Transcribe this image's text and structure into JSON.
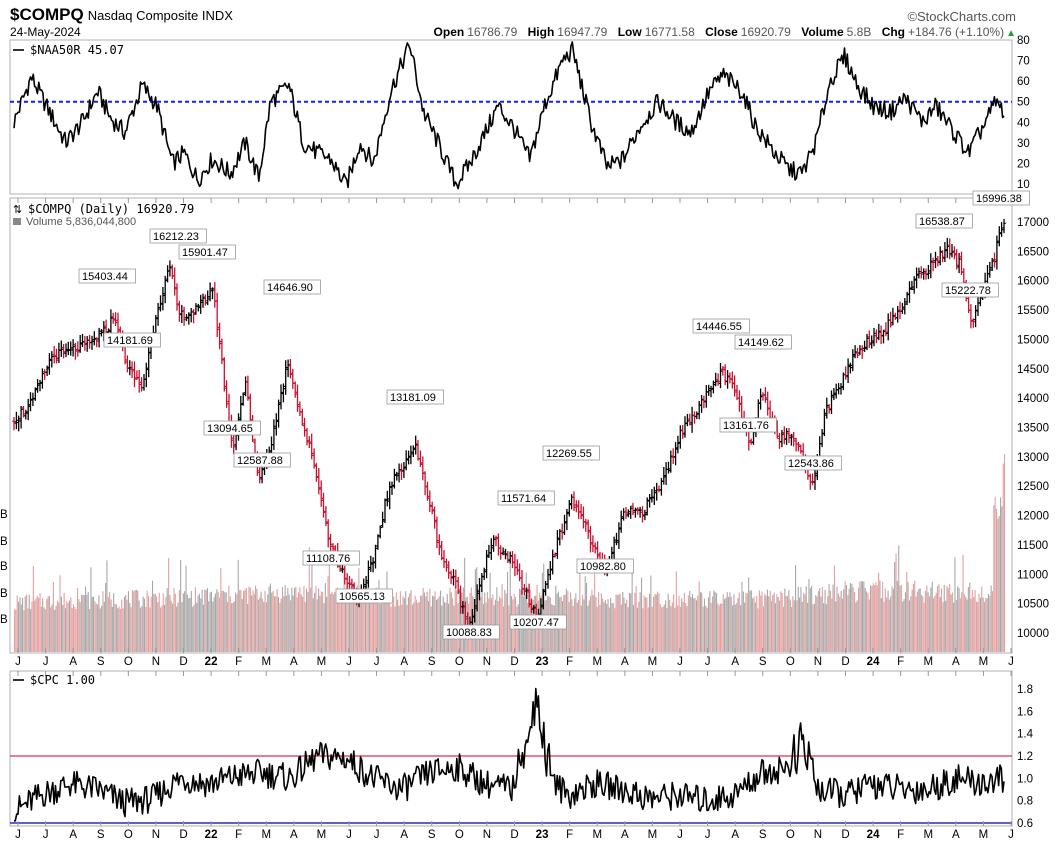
{
  "header": {
    "symbol": "$COMPQ",
    "name": "Nasdaq Composite INDX",
    "date": "24-May-2024",
    "brand": "©StockCharts.com",
    "open_label": "Open",
    "open": "16786.79",
    "high_label": "High",
    "high": "16947.79",
    "low_label": "Low",
    "low": "16771.58",
    "close_label": "Close",
    "close": "16920.79",
    "volume_label": "Volume",
    "volume": "5.8B",
    "chg_label": "Chg",
    "chg": "+184.76 (+1.10%)",
    "chg_arrow": "▲"
  },
  "panels": {
    "top_legend": "$NAA50R 45.07",
    "main_legend": "$COMPQ (Daily) 16920.79",
    "volume_legend": "Volume 5,836,044,800",
    "bottom_legend": "$CPC 1.00"
  },
  "colors": {
    "up_candle": "#000000",
    "down_candle": "#c8102e",
    "volume_up": "#a8a8a8",
    "volume_down": "#e3a0a0",
    "ref_blue": "#1a1aff",
    "cpc_red": "#d9304a",
    "cpc_blue": "#2b2bb8"
  },
  "x_axis_labels": [
    "J",
    "J",
    "A",
    "S",
    "O",
    "N",
    "D",
    "22",
    "F",
    "M",
    "A",
    "M",
    "J",
    "J",
    "A",
    "S",
    "O",
    "N",
    "D",
    "23",
    "F",
    "M",
    "A",
    "M",
    "J",
    "J",
    "A",
    "S",
    "O",
    "N",
    "D",
    "24",
    "F",
    "M",
    "A",
    "M",
    "J"
  ],
  "volume_axis_labels": [
    "B",
    "B",
    "B",
    "B",
    "B"
  ],
  "chart_data": [
    {
      "type": "line",
      "name": "$NAA50R",
      "title": "$NAA50R 45.07",
      "ylim": [
        5,
        82
      ],
      "yticks": [
        "80",
        "70",
        "60",
        "50",
        "40",
        "30",
        "20",
        "10"
      ],
      "reference_line": 50,
      "x": [
        "2021-06-01",
        "2021-06-20",
        "2021-07-10",
        "2021-07-28",
        "2021-08-15",
        "2021-09-01",
        "2021-09-15",
        "2021-10-01",
        "2021-10-20",
        "2021-11-05",
        "2021-11-22",
        "2021-12-05",
        "2021-12-20",
        "2022-01-05",
        "2022-01-25",
        "2022-02-10",
        "2022-02-25",
        "2022-03-10",
        "2022-03-30",
        "2022-04-15",
        "2022-05-01",
        "2022-05-15",
        "2022-06-01",
        "2022-06-16",
        "2022-07-01",
        "2022-07-20",
        "2022-08-10",
        "2022-08-25",
        "2022-09-10",
        "2022-09-30",
        "2022-10-15",
        "2022-11-01",
        "2022-11-15",
        "2022-12-01",
        "2022-12-20",
        "2023-01-05",
        "2023-01-25",
        "2023-02-05",
        "2023-02-25",
        "2023-03-15",
        "2023-04-01",
        "2023-04-20",
        "2023-05-10",
        "2023-05-30",
        "2023-06-15",
        "2023-07-05",
        "2023-07-20",
        "2023-08-10",
        "2023-08-25",
        "2023-09-15",
        "2023-10-01",
        "2023-10-15",
        "2023-10-30",
        "2023-11-15",
        "2023-12-01",
        "2023-12-15",
        "2024-01-01",
        "2024-01-20",
        "2024-02-05",
        "2024-02-25",
        "2024-03-10",
        "2024-03-30",
        "2024-04-15",
        "2024-04-30",
        "2024-05-15",
        "2024-05-24"
      ],
      "values": [
        40,
        62,
        45,
        30,
        40,
        55,
        42,
        35,
        58,
        48,
        20,
        25,
        12,
        22,
        15,
        30,
        13,
        50,
        58,
        30,
        25,
        22,
        9,
        30,
        20,
        55,
        78,
        45,
        30,
        10,
        20,
        35,
        48,
        38,
        22,
        48,
        70,
        75,
        40,
        18,
        22,
        38,
        50,
        40,
        35,
        55,
        63,
        55,
        38,
        25,
        17,
        15,
        30,
        60,
        72,
        58,
        48,
        45,
        52,
        40,
        48,
        35,
        25,
        37,
        50,
        45
      ]
    },
    {
      "type": "line",
      "name": "$COMPQ",
      "title": "$COMPQ (Daily) 16920.79",
      "ylim": [
        9750,
        17150
      ],
      "yticks": [
        "17000",
        "16500",
        "16000",
        "15500",
        "15000",
        "14500",
        "14000",
        "13500",
        "13000",
        "12500",
        "12000",
        "11500",
        "11000",
        "10500",
        "10000"
      ],
      "x": [
        "2021-06-01",
        "2021-06-20",
        "2021-07-12",
        "2021-08-01",
        "2021-08-20",
        "2021-09-07",
        "2021-09-20",
        "2021-10-04",
        "2021-10-20",
        "2021-11-05",
        "2021-11-19",
        "2021-11-30",
        "2021-12-20",
        "2022-01-05",
        "2022-01-14",
        "2022-01-27",
        "2022-02-10",
        "2022-02-24",
        "2022-03-10",
        "2022-03-29",
        "2022-04-12",
        "2022-04-28",
        "2022-05-12",
        "2022-05-25",
        "2022-06-16",
        "2022-06-30",
        "2022-07-15",
        "2022-07-30",
        "2022-08-16",
        "2022-09-01",
        "2022-09-14",
        "2022-09-30",
        "2022-10-13",
        "2022-10-28",
        "2022-11-10",
        "2022-11-30",
        "2022-12-15",
        "2022-12-28",
        "2023-01-10",
        "2023-01-25",
        "2023-02-02",
        "2023-02-15",
        "2023-03-01",
        "2023-03-13",
        "2023-04-01",
        "2023-04-25",
        "2023-05-15",
        "2023-06-01",
        "2023-06-15",
        "2023-07-01",
        "2023-07-19",
        "2023-08-03",
        "2023-08-18",
        "2023-09-01",
        "2023-09-20",
        "2023-10-05",
        "2023-10-12",
        "2023-10-27",
        "2023-11-10",
        "2023-11-25",
        "2023-12-10",
        "2023-12-28",
        "2024-01-15",
        "2024-01-31",
        "2024-02-15",
        "2024-03-01",
        "2024-03-21",
        "2024-04-05",
        "2024-04-19",
        "2024-05-05",
        "2024-05-15",
        "2024-05-23",
        "2024-05-24"
      ],
      "values": [
        13650,
        13900,
        14700,
        14800,
        14900,
        15100,
        15403.44,
        14500,
        14181.69,
        15500,
        16212.23,
        15400,
        15500,
        15901.47,
        14800,
        13094.65,
        14300,
        12587.88,
        13200,
        14646.9,
        13700,
        12800,
        11700,
        11108.76,
        10565.13,
        11200,
        12300,
        12800,
        13181.09,
        12200,
        11300,
        10800,
        10088.83,
        11000,
        11571.64,
        11200,
        10700,
        10207.47,
        11100,
        11800,
        12269.55,
        12000,
        11400,
        10982.8,
        12000,
        12100,
        12600,
        13300,
        13700,
        14000,
        14446.55,
        14100,
        13161.76,
        14149.62,
        13300,
        13400,
        13100,
        12543.86,
        13800,
        14200,
        14700,
        15000,
        15200,
        15500,
        16000,
        16200,
        16538.87,
        16300,
        15222.78,
        16000,
        16500,
        16996.38,
        16920.79
      ]
    },
    {
      "type": "bar",
      "name": "Volume",
      "title": "Volume 5,836,044,800",
      "x": [
        "2021-06",
        "2021-08",
        "2021-10",
        "2021-12",
        "2022-02",
        "2022-04",
        "2022-06",
        "2022-08",
        "2022-10",
        "2022-12",
        "2023-02",
        "2023-04",
        "2023-06",
        "2023-08",
        "2023-10",
        "2023-12",
        "2024-02",
        "2024-04",
        "2024-05-24"
      ],
      "values": [
        4.6,
        4.8,
        4.9,
        5.1,
        5.3,
        5.6,
        5.5,
        5.0,
        5.2,
        5.1,
        5.0,
        4.9,
        5.0,
        4.8,
        5.1,
        5.6,
        5.7,
        5.5,
        5.84
      ],
      "unit": "billions (approx.)"
    },
    {
      "type": "line",
      "name": "$CPC",
      "title": "$CPC 1.00",
      "ylim": [
        0.56,
        1.95
      ],
      "yticks": [
        "1.8",
        "1.6",
        "1.4",
        "1.2",
        "1.0",
        "0.8",
        "0.6"
      ],
      "reference_lines": [
        1.2,
        0.6
      ],
      "x": [
        "2021-06-01",
        "2021-07-01",
        "2021-08-01",
        "2021-09-01",
        "2021-10-01",
        "2021-11-01",
        "2021-12-01",
        "2022-01-01",
        "2022-02-01",
        "2022-03-01",
        "2022-04-01",
        "2022-05-01",
        "2022-06-01",
        "2022-07-01",
        "2022-08-01",
        "2022-09-01",
        "2022-10-01",
        "2022-11-01",
        "2022-12-01",
        "2022-12-28",
        "2023-01-15",
        "2023-02-01",
        "2023-03-01",
        "2023-04-01",
        "2023-05-01",
        "2023-06-01",
        "2023-07-01",
        "2023-08-01",
        "2023-09-01",
        "2023-10-01",
        "2023-10-15",
        "2023-11-01",
        "2023-12-01",
        "2024-01-01",
        "2024-02-01",
        "2024-03-01",
        "2024-04-01",
        "2024-05-01",
        "2024-05-24"
      ],
      "values": [
        0.7,
        0.85,
        0.95,
        0.9,
        0.78,
        0.82,
        1.0,
        0.95,
        1.02,
        1.05,
        1.0,
        1.2,
        1.18,
        1.0,
        0.9,
        1.05,
        1.1,
        0.95,
        0.9,
        1.9,
        0.95,
        0.85,
        0.95,
        0.9,
        0.82,
        0.85,
        0.8,
        0.85,
        1.05,
        1.1,
        1.55,
        0.9,
        0.85,
        0.95,
        0.9,
        0.9,
        1.0,
        0.95,
        1.0
      ]
    }
  ],
  "annotations": [
    {
      "text": "15403.44"
    },
    {
      "text": "14181.69"
    },
    {
      "text": "16212.23"
    },
    {
      "text": "15901.47"
    },
    {
      "text": "14646.90"
    },
    {
      "text": "13094.65"
    },
    {
      "text": "12587.88"
    },
    {
      "text": "13181.09"
    },
    {
      "text": "11108.76"
    },
    {
      "text": "10565.13"
    },
    {
      "text": "10088.83"
    },
    {
      "text": "11571.64"
    },
    {
      "text": "10207.47"
    },
    {
      "text": "12269.55"
    },
    {
      "text": "10982.80"
    },
    {
      "text": "14446.55"
    },
    {
      "text": "14149.62"
    },
    {
      "text": "13161.76"
    },
    {
      "text": "12543.86"
    },
    {
      "text": "16538.87"
    },
    {
      "text": "16996.38"
    },
    {
      "text": "15222.78"
    }
  ]
}
